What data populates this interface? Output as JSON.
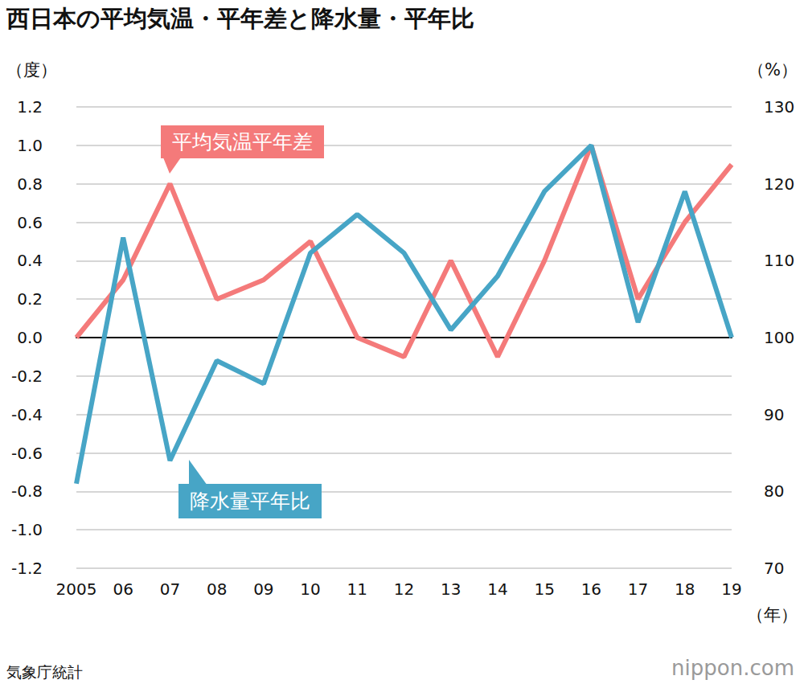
{
  "chart_data": {
    "type": "line",
    "title": "西日本の平均気温・平年差と降水量・平年比",
    "source": "気象庁統計",
    "credit": "nippon.com",
    "x_label": "（年）",
    "y_label": "（度）",
    "y2_label": "（%）",
    "categories": [
      "2005",
      "06",
      "07",
      "08",
      "09",
      "10",
      "11",
      "12",
      "13",
      "14",
      "15",
      "16",
      "17",
      "18",
      "19"
    ],
    "series": [
      {
        "name": "平均気温平年差",
        "color": "#f47a7a",
        "values": [
          0.0,
          0.3,
          0.8,
          0.2,
          0.3,
          0.5,
          0.0,
          -0.1,
          0.4,
          -0.1,
          0.4,
          1.0,
          0.2,
          0.6,
          0.9
        ]
      },
      {
        "name": "降水量平年比",
        "color": "#47a5c6",
        "axis": "y2",
        "values": [
          81,
          113,
          84,
          97,
          94,
          111,
          116,
          111,
          101,
          108,
          119,
          125,
          102,
          119,
          100
        ]
      }
    ],
    "ylim": [
      -1.2,
      1.2
    ],
    "yticks": [
      -1.2,
      {
        "value": -1.0,
        "label": "-1.0"
      },
      -0.8,
      -0.6,
      -0.4,
      -0.2,
      {
        "value": 0,
        "label": "0.0"
      },
      0.2,
      0.4,
      0.6,
      0.8,
      {
        "value": 1.0,
        "label": "1.0"
      },
      1.2
    ],
    "y2lim": [
      70,
      130
    ],
    "y2ticks": [
      70,
      80,
      90,
      100,
      110,
      120,
      130
    ],
    "grid": true
  }
}
